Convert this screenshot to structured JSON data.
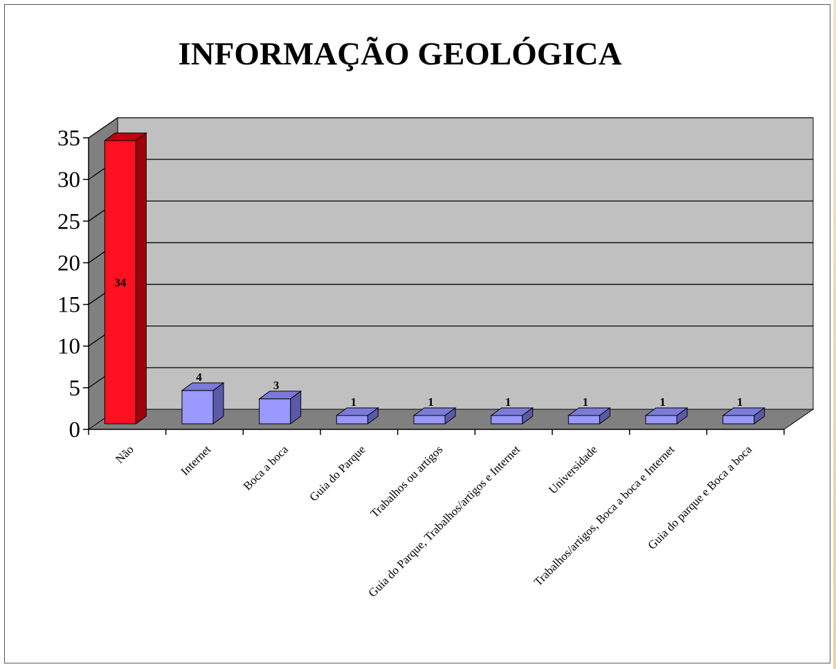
{
  "chart_data": {
    "type": "bar",
    "title": "INFORMAÇÃO GEOLÓGICA",
    "xlabel": "",
    "ylabel": "",
    "ylim": [
      0,
      35
    ],
    "yticks": [
      "0",
      "5",
      "10",
      "15",
      "20",
      "25",
      "30",
      "35"
    ],
    "grid": true,
    "legend": "none",
    "categories": [
      "Não",
      "Internet",
      "Boca a boca",
      "Guia do Parque",
      "Trabalhos ou artigos",
      "Guia do Parque, Trabalhos/artigos e Internet",
      "Universidade",
      "Trabalhos/artigos, Boca a boca e Internet",
      "Guia do parque e Boca a boca"
    ],
    "values": [
      34,
      4,
      3,
      1,
      1,
      1,
      1,
      1,
      1
    ],
    "data_labels": [
      "34",
      "4",
      "3",
      "1",
      "1",
      "1",
      "1",
      "1",
      "1"
    ],
    "colors": {
      "highlight_bar": "#ff1020",
      "bar": "#9999ff",
      "wall": "#c0c0c0",
      "side_wall": "#808080",
      "floor": "#808080",
      "gridline": "#000000"
    }
  }
}
